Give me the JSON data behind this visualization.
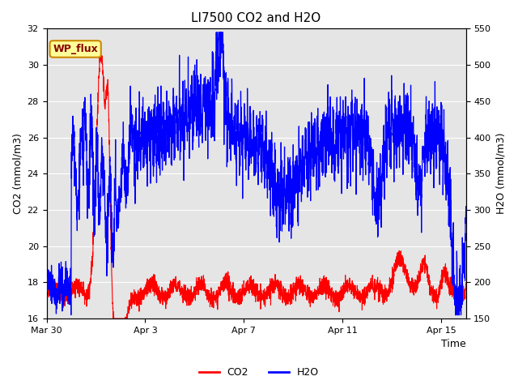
{
  "title": "LI7500 CO2 and H2O",
  "xlabel": "Time",
  "ylabel_left": "CO2 (mmol/m3)",
  "ylabel_right": "H2O (mmol/m3)",
  "ylim_left": [
    16,
    32
  ],
  "ylim_right": [
    150,
    550
  ],
  "yticks_left": [
    16,
    18,
    20,
    22,
    24,
    26,
    28,
    30,
    32
  ],
  "yticks_right": [
    150,
    200,
    250,
    300,
    350,
    400,
    450,
    500,
    550
  ],
  "background_color": "#e5e5e5",
  "figure_background": "#ffffff",
  "grid_color": "#ffffff",
  "co2_color": "#ff0000",
  "h2o_color": "#0000ff",
  "legend_label_co2": "CO2",
  "legend_label_h2o": "H2O",
  "annotation_text": "WP_flux",
  "annotation_bg": "#ffff99",
  "annotation_border": "#cc8800",
  "annotation_text_color": "#880000",
  "xtick_labels": [
    "Mar 30",
    "Apr 3",
    "Apr 7",
    "Apr 11",
    "Apr 15"
  ],
  "xtick_positions_days": [
    0,
    4,
    8,
    12,
    16
  ],
  "xlim": [
    0,
    17
  ]
}
